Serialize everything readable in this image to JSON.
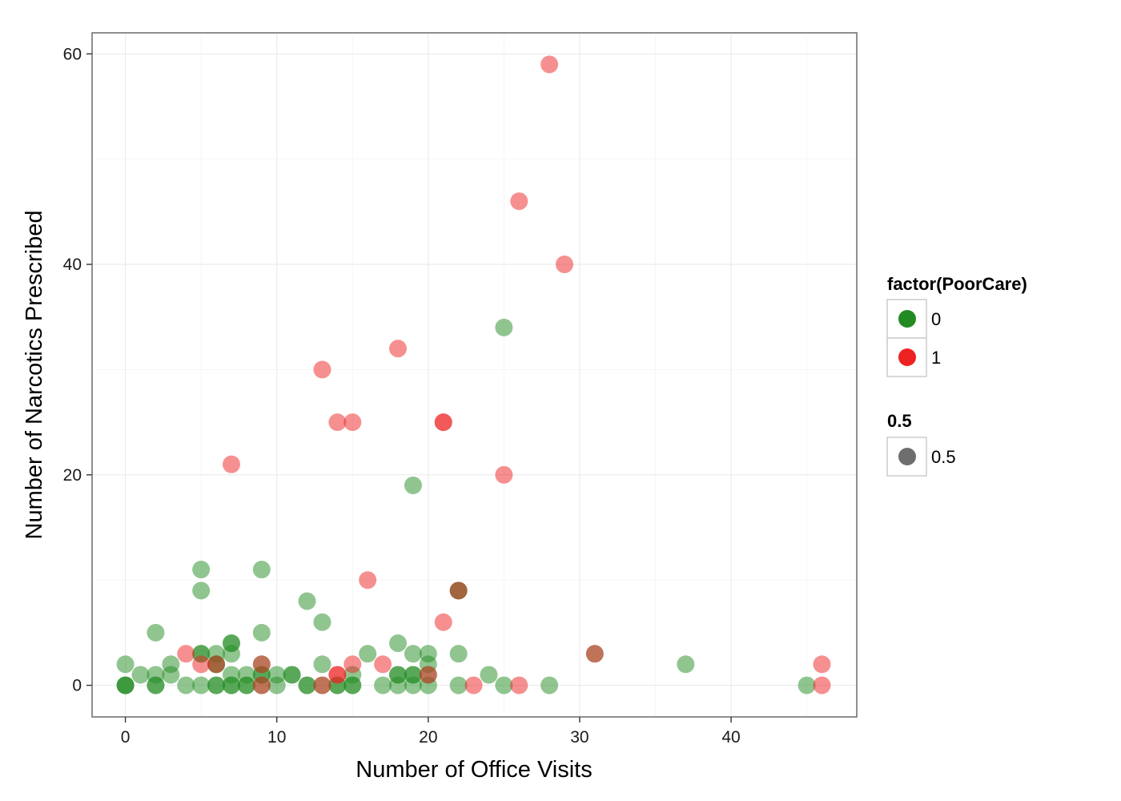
{
  "chart_data": {
    "type": "scatter",
    "xlabel": "Number of Office Visits",
    "ylabel": "Number of Narcotics Prescribed",
    "xlim": [
      -2.2,
      48.3
    ],
    "ylim": [
      -3,
      62
    ],
    "x_ticks": [
      0,
      10,
      20,
      30,
      40
    ],
    "y_ticks": [
      0,
      20,
      40,
      60
    ],
    "x_tick_labels": [
      "0",
      "10",
      "20",
      "30",
      "40"
    ],
    "y_tick_labels": [
      "0",
      "20",
      "40",
      "60"
    ],
    "grid": true,
    "point_alpha": 0.5,
    "legend": {
      "position": "right",
      "color_title": "factor(PoorCare)",
      "color_entries": [
        {
          "label": "0",
          "color": "#228b22"
        },
        {
          "label": "1",
          "color": "#ee2222"
        }
      ],
      "alpha_title": "0.5",
      "alpha_entries": [
        {
          "label": "0.5",
          "color": "#6e6e6e"
        }
      ]
    },
    "series": [
      {
        "name": "0",
        "color": "#228b22",
        "points": [
          [
            0,
            2
          ],
          [
            0,
            0
          ],
          [
            0,
            0
          ],
          [
            0,
            0
          ],
          [
            1,
            1
          ],
          [
            2,
            5
          ],
          [
            2,
            1
          ],
          [
            2,
            0
          ],
          [
            2,
            0
          ],
          [
            3,
            2
          ],
          [
            3,
            1
          ],
          [
            4,
            0
          ],
          [
            5,
            11
          ],
          [
            5,
            9
          ],
          [
            5,
            3
          ],
          [
            5,
            3
          ],
          [
            5,
            0
          ],
          [
            6,
            3
          ],
          [
            6,
            2
          ],
          [
            6,
            2
          ],
          [
            6,
            0
          ],
          [
            6,
            0
          ],
          [
            7,
            4
          ],
          [
            7,
            4
          ],
          [
            7,
            3
          ],
          [
            7,
            1
          ],
          [
            7,
            0
          ],
          [
            7,
            0
          ],
          [
            8,
            1
          ],
          [
            8,
            0
          ],
          [
            8,
            0
          ],
          [
            9,
            11
          ],
          [
            9,
            5
          ],
          [
            9,
            2
          ],
          [
            9,
            1
          ],
          [
            9,
            1
          ],
          [
            9,
            0
          ],
          [
            10,
            1
          ],
          [
            10,
            0
          ],
          [
            11,
            1
          ],
          [
            11,
            1
          ],
          [
            12,
            8
          ],
          [
            12,
            0
          ],
          [
            12,
            0
          ],
          [
            13,
            6
          ],
          [
            13,
            2
          ],
          [
            13,
            0
          ],
          [
            14,
            0
          ],
          [
            14,
            0
          ],
          [
            15,
            1
          ],
          [
            15,
            0
          ],
          [
            15,
            0
          ],
          [
            16,
            3
          ],
          [
            17,
            0
          ],
          [
            18,
            4
          ],
          [
            18,
            1
          ],
          [
            18,
            1
          ],
          [
            18,
            0
          ],
          [
            19,
            19
          ],
          [
            19,
            3
          ],
          [
            19,
            1
          ],
          [
            19,
            1
          ],
          [
            19,
            0
          ],
          [
            20,
            3
          ],
          [
            20,
            2
          ],
          [
            20,
            1
          ],
          [
            20,
            0
          ],
          [
            22,
            9
          ],
          [
            22,
            9
          ],
          [
            22,
            3
          ],
          [
            22,
            0
          ],
          [
            24,
            1
          ],
          [
            25,
            34
          ],
          [
            25,
            0
          ],
          [
            28,
            0
          ],
          [
            31,
            3
          ],
          [
            37,
            2
          ],
          [
            45,
            0
          ]
        ]
      },
      {
        "name": "1",
        "color": "#ee2222",
        "points": [
          [
            4,
            3
          ],
          [
            5,
            2
          ],
          [
            6,
            2
          ],
          [
            7,
            21
          ],
          [
            9,
            2
          ],
          [
            9,
            0
          ],
          [
            13,
            30
          ],
          [
            13,
            0
          ],
          [
            14,
            25
          ],
          [
            14,
            1
          ],
          [
            14,
            1
          ],
          [
            15,
            25
          ],
          [
            15,
            2
          ],
          [
            16,
            10
          ],
          [
            17,
            2
          ],
          [
            18,
            32
          ],
          [
            20,
            1
          ],
          [
            21,
            25
          ],
          [
            21,
            25
          ],
          [
            21,
            6
          ],
          [
            22,
            9
          ],
          [
            23,
            0
          ],
          [
            25,
            20
          ],
          [
            26,
            46
          ],
          [
            26,
            0
          ],
          [
            28,
            59
          ],
          [
            29,
            40
          ],
          [
            31,
            3
          ],
          [
            46,
            2
          ],
          [
            46,
            0
          ]
        ]
      }
    ]
  }
}
